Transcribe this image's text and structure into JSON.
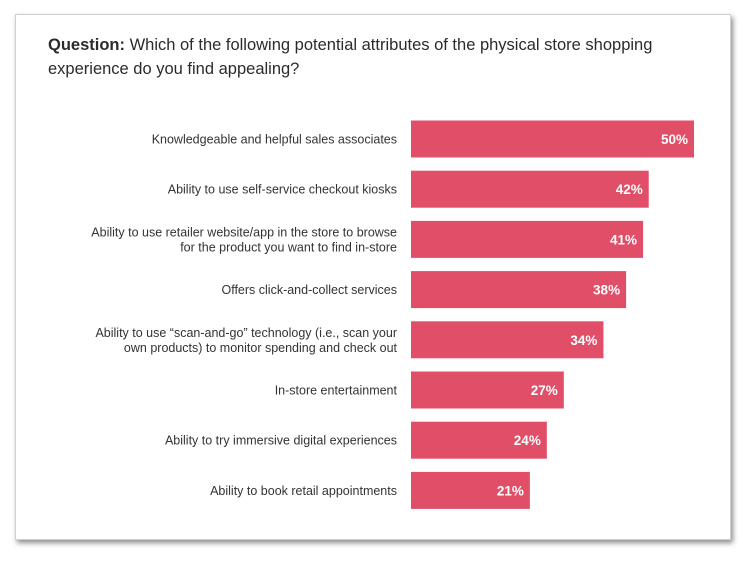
{
  "question": {
    "label": "Question:",
    "text": " Which of the following potential attributes of the physical store shopping experience do you find appealing?"
  },
  "colors": {
    "bar": "#e04e68",
    "label": "#333333",
    "value_text": "#ffffff"
  },
  "chart_data": {
    "type": "bar",
    "orientation": "horizontal",
    "title": "",
    "xlabel": "",
    "ylabel": "",
    "xlim": [
      0,
      50
    ],
    "grid": false,
    "legend": "none",
    "categories": [
      [
        "Knowledgeable and helpful sales associates"
      ],
      [
        "Ability to use self-service checkout kiosks"
      ],
      [
        "Ability to use retailer website/app in the store to browse",
        "for the product you want to find in-store"
      ],
      [
        "Offers click-and-collect services"
      ],
      [
        "Ability to use “scan-and-go” technology (i.e., scan your",
        "own products) to monitor spending and check out"
      ],
      [
        "In-store entertainment"
      ],
      [
        "Ability to try immersive digital experiences"
      ],
      [
        "Ability to book retail appointments"
      ]
    ],
    "values": [
      50,
      42,
      41,
      38,
      34,
      27,
      24,
      21
    ],
    "value_labels": [
      "50%",
      "42%",
      "41%",
      "38%",
      "34%",
      "27%",
      "24%",
      "21%"
    ]
  }
}
